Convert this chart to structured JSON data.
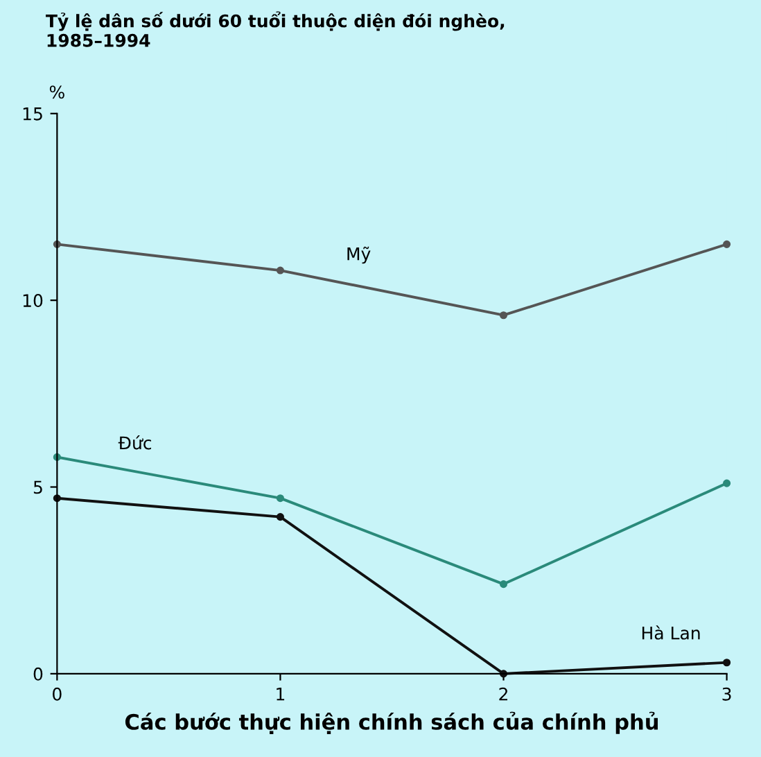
{
  "chart_data": {
    "type": "line",
    "title": "Tỷ lệ dân số dưới 60 tuổi thuộc diện đói nghèo,\n1985–1994",
    "ylabel": "%",
    "xlabel": "Các bước thực hiện chính sách của chính phủ",
    "x": [
      0,
      1,
      2,
      3
    ],
    "xlim": [
      0,
      3
    ],
    "xticks": [
      0,
      1,
      2,
      3
    ],
    "ylim": [
      0,
      15
    ],
    "yticks": [
      0,
      5,
      10,
      15
    ],
    "marker": "circle",
    "grid": false,
    "legend": false,
    "series": [
      {
        "name": "Mỹ",
        "color": "#555555",
        "values": [
          11.5,
          10.8,
          9.6,
          11.5
        ]
      },
      {
        "name": "Đức",
        "color": "#2a8a7a",
        "values": [
          5.8,
          4.7,
          2.4,
          5.1
        ]
      },
      {
        "name": "Hà Lan",
        "color": "#111111",
        "values": [
          4.7,
          4.2,
          0,
          0.3
        ]
      }
    ]
  }
}
